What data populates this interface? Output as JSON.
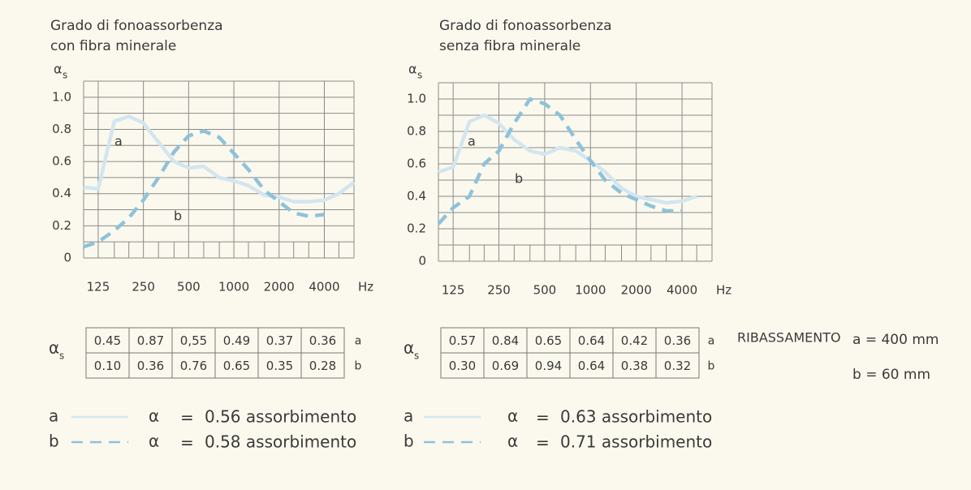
{
  "chart_data": [
    {
      "type": "line",
      "title": [
        "Grado di fonoassorbenza",
        "con fibra minerale"
      ],
      "ylabel": {
        "symbol": "α",
        "subscript": "s"
      },
      "x_unit": "Hz",
      "log_x": true,
      "grid": true,
      "x": [
        100,
        125,
        160,
        200,
        250,
        315,
        400,
        500,
        630,
        800,
        1000,
        1250,
        1600,
        2000,
        2500,
        3150,
        4000,
        5000,
        6300
      ],
      "series": [
        {
          "name": "a",
          "color": "#d3e6ef",
          "style": "solid",
          "values": [
            0.44,
            0.43,
            0.85,
            0.88,
            0.84,
            0.72,
            0.6,
            0.56,
            0.57,
            0.5,
            0.48,
            0.45,
            0.39,
            0.38,
            0.35,
            0.35,
            0.36,
            0.4,
            0.47
          ]
        },
        {
          "name": "b",
          "color": "#8ec2da",
          "style": "dashed",
          "values": [
            0.07,
            0.1,
            0.17,
            0.25,
            0.36,
            0.5,
            0.66,
            0.76,
            0.79,
            0.75,
            0.65,
            0.55,
            0.42,
            0.35,
            0.28,
            0.26,
            0.27,
            null,
            null
          ]
        }
      ],
      "xlim": [
        100,
        6300
      ],
      "ylim": [
        0,
        1.1
      ],
      "xticks": [
        125,
        250,
        500,
        1000,
        2000,
        4000
      ],
      "minor_xticks": [
        160,
        200,
        315,
        400,
        630,
        800,
        1250,
        1600,
        2500,
        3150,
        5000
      ],
      "yticks": [
        0,
        0.2,
        0.4,
        0.6,
        0.8,
        {
          "value": 1,
          "label": "1.0"
        }
      ],
      "ygrid": [
        0.1,
        0.2,
        0.3,
        0.4,
        0.5,
        0.6,
        0.7,
        0.8,
        0.9,
        1.0,
        1.1
      ],
      "table": {
        "label": {
          "symbol": "α",
          "subscript": "s"
        },
        "rows": [
          {
            "key": "a",
            "cells": [
              "0.45",
              "0.87",
              "0,55",
              "0.49",
              "0.37",
              "0.36"
            ]
          },
          {
            "key": "b",
            "cells": [
              "0.10",
              "0.36",
              "0.76",
              "0.65",
              "0.35",
              "0.28"
            ]
          }
        ]
      },
      "legend": [
        {
          "key": "a",
          "symbol": "α",
          "equals": "=",
          "text": "0.56 assorbimento"
        },
        {
          "key": "b",
          "symbol": "α",
          "equals": "=",
          "text": "0.58 assorbimento"
        }
      ]
    },
    {
      "type": "line",
      "title": [
        "Grado di fonoassorbenza",
        "senza fibra minerale"
      ],
      "ylabel": {
        "symbol": "α",
        "subscript": "s"
      },
      "x_unit": "Hz",
      "log_x": true,
      "grid": true,
      "x": [
        100,
        125,
        160,
        200,
        250,
        315,
        400,
        500,
        630,
        800,
        1000,
        1250,
        1600,
        2000,
        2500,
        3150,
        4000,
        5000,
        6300
      ],
      "series": [
        {
          "name": "a",
          "color": "#d3e6ef",
          "style": "solid",
          "values": [
            0.55,
            0.58,
            0.86,
            0.9,
            0.85,
            0.75,
            0.68,
            0.66,
            0.7,
            0.68,
            0.62,
            0.55,
            0.45,
            0.4,
            0.38,
            0.36,
            0.37,
            0.4,
            null
          ]
        },
        {
          "name": "b",
          "color": "#8ec2da",
          "style": "dashed",
          "values": [
            0.23,
            0.33,
            0.4,
            0.6,
            0.68,
            0.85,
            1.0,
            0.97,
            0.9,
            0.75,
            0.62,
            0.5,
            0.42,
            0.38,
            0.34,
            0.31,
            0.31,
            null,
            null
          ]
        }
      ],
      "xlim": [
        100,
        6300
      ],
      "ylim": [
        0,
        1.1
      ],
      "xticks": [
        125,
        250,
        500,
        1000,
        2000,
        4000
      ],
      "minor_xticks": [
        160,
        200,
        315,
        400,
        630,
        800,
        1250,
        1600,
        2500,
        3150,
        5000
      ],
      "yticks": [
        0,
        0.2,
        0.4,
        0.6,
        0.8,
        {
          "value": 1,
          "label": "1.0"
        }
      ],
      "ygrid": [
        0.1,
        0.2,
        0.3,
        0.4,
        0.5,
        0.6,
        0.7,
        0.8,
        0.9,
        1.0,
        1.1
      ],
      "table": {
        "label": {
          "symbol": "α",
          "subscript": "s"
        },
        "rows": [
          {
            "key": "a",
            "cells": [
              "0.57",
              "0.84",
              "0.65",
              "0.64",
              "0.42",
              "0.36"
            ]
          },
          {
            "key": "b",
            "cells": [
              "0.30",
              "0.69",
              "0.94",
              "0.64",
              "0.38",
              "0.32"
            ]
          }
        ]
      },
      "legend": [
        {
          "key": "a",
          "symbol": "α",
          "equals": "=",
          "text": "0.63 assorbimento"
        },
        {
          "key": "b",
          "symbol": "α",
          "equals": "=",
          "text": "0.71 assorbimento"
        }
      ]
    }
  ],
  "ribassamento": {
    "label": "RIBASSAMENTO",
    "lines": [
      "a = 400 mm",
      "b =  60 mm"
    ]
  }
}
